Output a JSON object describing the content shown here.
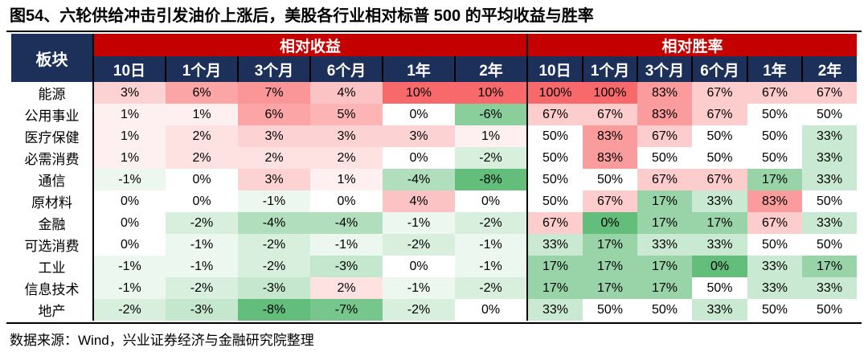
{
  "title": "图54、六轮供给冲击引发油价上涨后，美股各行业相对标普 500 的平均收益与胜率",
  "footer": {
    "source": "数据来源：Wind，兴业证券经济与金融研究院整理"
  },
  "table": {
    "sector_header": "板块",
    "returns_group_header": "相对收益",
    "winrate_group_header": "相对胜率",
    "periods": [
      "10日",
      "1个月",
      "3个月",
      "6个月",
      "1年",
      "2年"
    ]
  },
  "colors": {
    "header_red": "#C40000",
    "header_navy": "#1C3059",
    "scale_high_red": "#F8696B",
    "scale_mid_white": "#FFFFFF",
    "scale_low_green": "#63BE7B"
  },
  "chart_data": {
    "type": "heatmap",
    "title": "六轮供给冲击引发油价上涨后，美股各行业相对标普500的平均收益与胜率",
    "row_label": "板块",
    "column_groups": [
      {
        "label": "相对收益",
        "columns": [
          "10日",
          "1个月",
          "3个月",
          "6个月",
          "1年",
          "2年"
        ],
        "unit": "%",
        "color_scale": {
          "min": -8,
          "mid": 0,
          "max": 10
        }
      },
      {
        "label": "相对胜率",
        "columns": [
          "10日",
          "1个月",
          "3个月",
          "6个月",
          "1年",
          "2年"
        ],
        "unit": "%",
        "color_scale": {
          "min": 0,
          "mid": 50,
          "max": 100
        }
      }
    ],
    "rows": [
      {
        "sector": "能源",
        "returns": [
          3,
          6,
          7,
          4,
          10,
          10
        ],
        "win_rates": [
          100,
          100,
          83,
          67,
          67,
          67
        ]
      },
      {
        "sector": "公用事业",
        "returns": [
          1,
          1,
          6,
          5,
          0,
          -6
        ],
        "win_rates": [
          67,
          67,
          83,
          67,
          50,
          50
        ]
      },
      {
        "sector": "医疗保健",
        "returns": [
          1,
          2,
          3,
          3,
          3,
          1
        ],
        "win_rates": [
          50,
          83,
          67,
          50,
          50,
          33
        ]
      },
      {
        "sector": "必需消费",
        "returns": [
          1,
          2,
          2,
          2,
          0,
          -2
        ],
        "win_rates": [
          50,
          83,
          50,
          50,
          50,
          33
        ]
      },
      {
        "sector": "通信",
        "returns": [
          -1,
          0,
          3,
          1,
          -4,
          -8
        ],
        "win_rates": [
          50,
          50,
          67,
          67,
          17,
          33
        ]
      },
      {
        "sector": "原材料",
        "returns": [
          0,
          0,
          -1,
          0,
          4,
          0
        ],
        "win_rates": [
          50,
          67,
          17,
          33,
          83,
          50
        ]
      },
      {
        "sector": "金融",
        "returns": [
          0,
          -2,
          -4,
          -4,
          -1,
          -2
        ],
        "win_rates": [
          67,
          0,
          17,
          17,
          67,
          33
        ]
      },
      {
        "sector": "可选消费",
        "returns": [
          0,
          -1,
          -2,
          -1,
          -2,
          -1
        ],
        "win_rates": [
          33,
          17,
          33,
          33,
          50,
          50
        ]
      },
      {
        "sector": "工业",
        "returns": [
          -1,
          -1,
          -2,
          -3,
          0,
          -1
        ],
        "win_rates": [
          17,
          17,
          17,
          0,
          33,
          17
        ]
      },
      {
        "sector": "信息技术",
        "returns": [
          -1,
          -2,
          -3,
          2,
          -1,
          -2
        ],
        "win_rates": [
          17,
          17,
          17,
          50,
          33,
          33
        ]
      },
      {
        "sector": "地产",
        "returns": [
          -2,
          -3,
          -8,
          -7,
          -2,
          0
        ],
        "win_rates": [
          33,
          50,
          50,
          33,
          50,
          50
        ]
      }
    ]
  }
}
